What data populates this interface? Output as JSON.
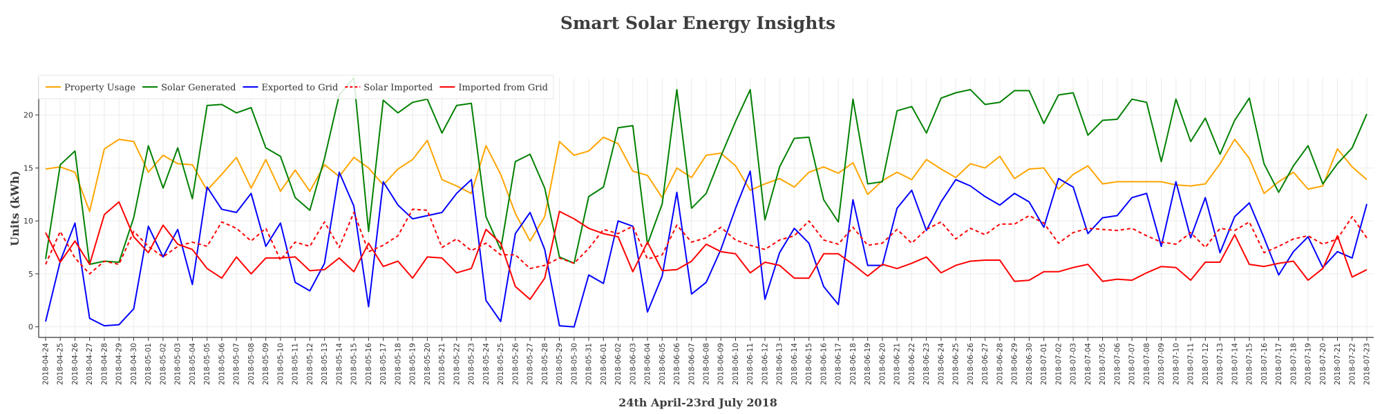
{
  "chart_data": {
    "type": "line",
    "title": "Smart Solar Energy Insights",
    "xlabel": "24th April-23rd July 2018",
    "ylabel": "Units (kWh)",
    "ylim": [
      -1,
      23.5
    ],
    "yticks": [
      0,
      5,
      10,
      15,
      20
    ],
    "grid": true,
    "legend_position": "top-left",
    "x": [
      "2018-04-24",
      "2018-04-25",
      "2018-04-26",
      "2018-04-27",
      "2018-04-28",
      "2018-04-29",
      "2018-04-30",
      "2018-05-01",
      "2018-05-02",
      "2018-05-03",
      "2018-05-04",
      "2018-05-05",
      "2018-05-06",
      "2018-05-07",
      "2018-05-08",
      "2018-05-09",
      "2018-05-10",
      "2018-05-11",
      "2018-05-12",
      "2018-05-13",
      "2018-05-14",
      "2018-05-15",
      "2018-05-16",
      "2018-05-17",
      "2018-05-18",
      "2018-05-19",
      "2018-05-20",
      "2018-05-21",
      "2018-05-22",
      "2018-05-23",
      "2018-05-24",
      "2018-05-25",
      "2018-05-26",
      "2018-05-27",
      "2018-05-28",
      "2018-05-29",
      "2018-05-30",
      "2018-05-31",
      "2018-06-01",
      "2018-06-02",
      "2018-06-03",
      "2018-06-04",
      "2018-06-05",
      "2018-06-06",
      "2018-06-07",
      "2018-06-08",
      "2018-06-09",
      "2018-06-10",
      "2018-06-11",
      "2018-06-12",
      "2018-06-13",
      "2018-06-14",
      "2018-06-15",
      "2018-06-16",
      "2018-06-17",
      "2018-06-18",
      "2018-06-19",
      "2018-06-20",
      "2018-06-21",
      "2018-06-22",
      "2018-06-23",
      "2018-06-24",
      "2018-06-25",
      "2018-06-26",
      "2018-06-27",
      "2018-06-28",
      "2018-06-29",
      "2018-06-30",
      "2018-07-01",
      "2018-07-02",
      "2018-07-03",
      "2018-07-04",
      "2018-07-05",
      "2018-07-06",
      "2018-07-07",
      "2018-07-08",
      "2018-07-09",
      "2018-07-10",
      "2018-07-11",
      "2018-07-12",
      "2018-07-13",
      "2018-07-14",
      "2018-07-15",
      "2018-07-16",
      "2018-07-17",
      "2018-07-18",
      "2018-07-19",
      "2018-07-20",
      "2018-07-21",
      "2018-07-22",
      "2018-07-23"
    ],
    "series": [
      {
        "name": "Property Usage",
        "color": "#FFA500",
        "dash": "solid",
        "values": [
          14.9,
          15.1,
          14.6,
          10.9,
          16.8,
          17.7,
          17.5,
          14.6,
          16.2,
          15.4,
          15.3,
          12.9,
          14.4,
          16.0,
          13.1,
          15.8,
          12.8,
          14.8,
          12.8,
          15.3,
          14.2,
          16.0,
          15.0,
          13.4,
          14.9,
          15.8,
          17.6,
          13.9,
          13.3,
          12.6,
          17.1,
          14.4,
          10.7,
          8.1,
          10.4,
          17.5,
          16.2,
          16.6,
          17.9,
          17.3,
          14.7,
          14.3,
          12.2,
          15.0,
          14.1,
          16.2,
          16.4,
          15.2,
          12.9,
          13.5,
          14.0,
          13.2,
          14.6,
          15.1,
          14.5,
          15.5,
          12.5,
          13.8,
          14.6,
          13.9,
          15.8,
          14.9,
          14.1,
          15.4,
          15.0,
          16.1,
          14.0,
          14.9,
          15.0,
          13.0,
          14.4,
          15.2,
          13.5,
          13.7,
          13.7,
          13.7,
          13.7,
          13.4,
          13.3,
          13.5,
          15.4,
          17.7,
          15.9,
          12.6,
          13.7,
          14.6,
          13.0,
          13.3,
          16.8,
          15.1,
          13.9
        ]
      },
      {
        "name": "Solar Generated",
        "color": "#008000",
        "dash": "solid",
        "values": [
          6.4,
          15.3,
          16.6,
          5.9,
          6.2,
          6.1,
          10.3,
          17.1,
          13.1,
          16.9,
          12.1,
          20.9,
          21.0,
          20.2,
          20.7,
          16.9,
          16.1,
          12.2,
          11.0,
          15.9,
          21.9,
          23.5,
          9.0,
          21.4,
          20.2,
          21.2,
          21.5,
          18.3,
          20.9,
          21.1,
          10.4,
          7.3,
          15.6,
          16.3,
          13.1,
          6.6,
          6.0,
          12.3,
          13.2,
          18.8,
          19.0,
          7.8,
          11.6,
          22.4,
          11.2,
          12.6,
          16.1,
          19.4,
          22.4,
          10.1,
          15.1,
          17.8,
          17.9,
          12.0,
          9.9,
          21.5,
          13.5,
          13.7,
          20.4,
          20.8,
          18.3,
          21.6,
          22.1,
          22.4,
          21.0,
          21.2,
          22.3,
          22.3,
          19.2,
          21.9,
          22.1,
          18.1,
          19.5,
          19.6,
          21.5,
          21.2,
          15.6,
          21.5,
          17.5,
          19.7,
          16.3,
          19.5,
          21.6,
          15.4,
          12.7,
          15.2,
          17.1,
          13.5,
          15.4,
          16.9,
          20.1
        ]
      },
      {
        "name": "Exported to Grid",
        "color": "#0000FF",
        "dash": "solid",
        "values": [
          0.5,
          6.2,
          9.8,
          0.8,
          0.1,
          0.2,
          1.7,
          9.5,
          6.6,
          9.2,
          4.0,
          13.2,
          11.1,
          10.8,
          12.6,
          7.6,
          9.8,
          4.2,
          3.4,
          6.0,
          14.6,
          11.4,
          1.9,
          13.7,
          11.5,
          10.2,
          10.5,
          10.8,
          12.6,
          13.9,
          2.5,
          0.5,
          8.8,
          10.8,
          7.3,
          0.1,
          0.0,
          4.9,
          4.1,
          10.0,
          9.5,
          1.4,
          4.8,
          12.7,
          3.1,
          4.2,
          7.3,
          11.2,
          14.7,
          2.6,
          7.0,
          9.3,
          7.9,
          3.8,
          2.1,
          12.0,
          5.8,
          5.8,
          11.2,
          12.9,
          9.1,
          11.8,
          13.9,
          13.3,
          12.3,
          11.5,
          12.6,
          11.8,
          9.4,
          14.0,
          13.2,
          8.8,
          10.3,
          10.5,
          12.2,
          12.6,
          7.6,
          13.7,
          8.4,
          12.2,
          7.0,
          10.4,
          11.7,
          8.4,
          4.9,
          7.1,
          8.5,
          5.6,
          7.1,
          6.5,
          11.6
        ]
      },
      {
        "name": "Solar Imported",
        "color": "#FF0000",
        "dash": "dashed",
        "values": [
          5.9,
          9.0,
          6.5,
          5.0,
          6.2,
          5.9,
          9.0,
          7.6,
          6.6,
          7.6,
          8.0,
          7.6,
          9.9,
          9.3,
          8.1,
          9.3,
          6.3,
          8.0,
          7.6,
          9.9,
          7.5,
          10.8,
          7.1,
          7.7,
          8.6,
          11.1,
          11.0,
          7.5,
          8.3,
          7.2,
          7.9,
          6.8,
          6.8,
          5.5,
          5.8,
          6.5,
          6.0,
          7.4,
          9.2,
          8.8,
          9.5,
          6.4,
          6.8,
          9.6,
          8.0,
          8.4,
          9.4,
          8.2,
          7.7,
          7.3,
          8.2,
          8.6,
          10.0,
          8.2,
          7.8,
          9.4,
          7.7,
          7.9,
          9.2,
          7.9,
          9.2,
          9.9,
          8.3,
          9.3,
          8.7,
          9.7,
          9.7,
          10.5,
          9.8,
          7.9,
          8.9,
          9.3,
          9.2,
          9.1,
          9.3,
          8.6,
          8.0,
          7.8,
          8.9,
          7.5,
          9.3,
          9.1,
          9.9,
          7.0,
          7.6,
          8.3,
          8.6,
          7.8,
          8.3,
          10.4,
          8.4
        ]
      },
      {
        "name": "Imported from Grid",
        "color": "#FF0000",
        "dash": "solid",
        "values": [
          8.9,
          6.1,
          8.1,
          5.9,
          10.6,
          11.8,
          8.5,
          7.0,
          9.6,
          7.8,
          7.3,
          5.5,
          4.6,
          6.6,
          5.0,
          6.5,
          6.5,
          6.6,
          5.3,
          5.4,
          6.5,
          5.2,
          7.9,
          5.7,
          6.2,
          4.6,
          6.6,
          6.5,
          5.1,
          5.5,
          9.2,
          7.9,
          3.8,
          2.6,
          4.6,
          10.9,
          10.2,
          9.3,
          8.8,
          8.5,
          5.2,
          8.0,
          5.3,
          5.4,
          6.2,
          7.8,
          7.1,
          6.9,
          5.1,
          6.1,
          5.8,
          4.6,
          4.6,
          6.9,
          6.9,
          5.9,
          4.8,
          5.9,
          5.5,
          6.0,
          6.6,
          5.1,
          5.8,
          6.2,
          6.3,
          6.3,
          4.3,
          4.4,
          5.2,
          5.2,
          5.6,
          5.9,
          4.3,
          4.5,
          4.4,
          5.1,
          5.7,
          5.6,
          4.4,
          6.1,
          6.1,
          8.7,
          5.9,
          5.7,
          6.0,
          6.2,
          4.4,
          5.5,
          8.6,
          4.7,
          5.4
        ]
      }
    ]
  }
}
